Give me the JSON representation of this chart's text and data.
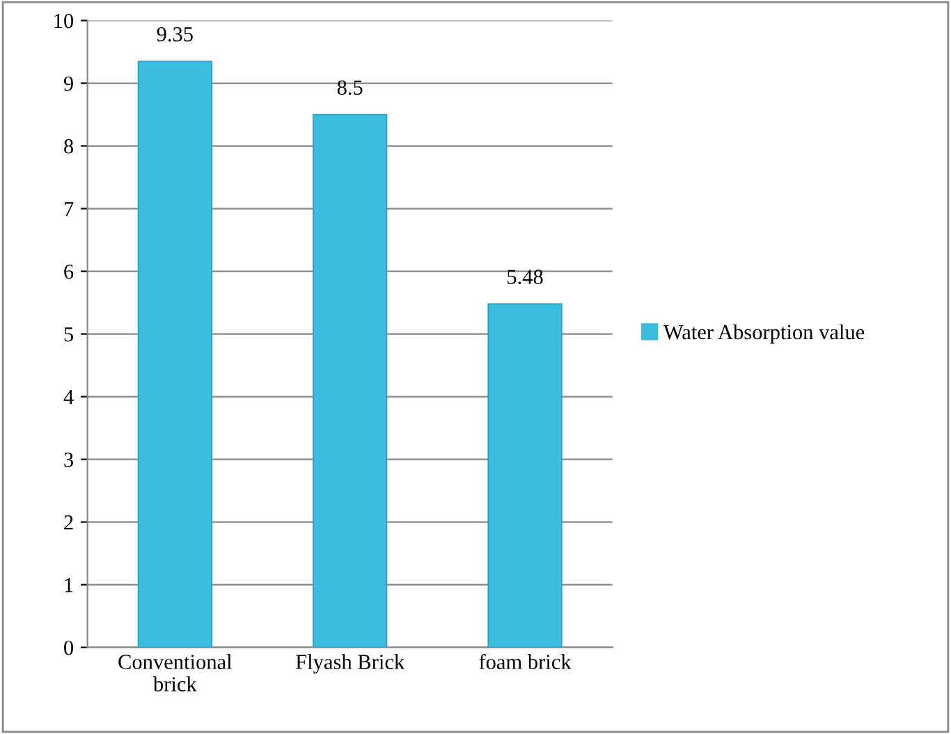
{
  "chart_data": {
    "type": "bar",
    "categories": [
      "Conventional\nbrick",
      "Flyash Brick",
      "foam brick"
    ],
    "series": [
      {
        "name": "Water Absorption value",
        "color": "#3bbde0",
        "values": [
          9.35,
          8.5,
          5.48
        ]
      }
    ],
    "ylim": [
      0,
      10
    ],
    "yticks": [
      0,
      1,
      2,
      3,
      4,
      5,
      6,
      7,
      8,
      9,
      10
    ],
    "grid": "y",
    "legend": "right",
    "data_labels": true
  }
}
